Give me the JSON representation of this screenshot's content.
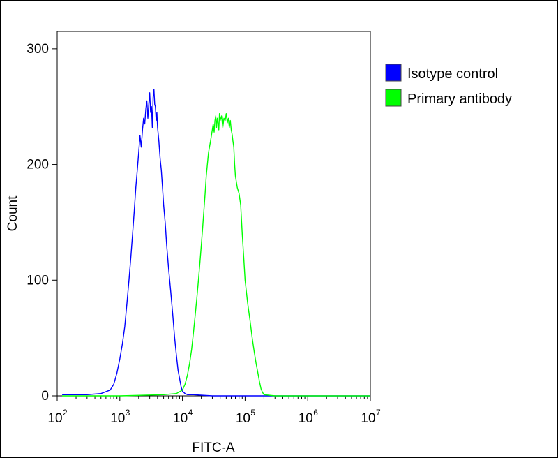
{
  "chart_data": {
    "type": "line",
    "title": "",
    "xlabel": "FITC-A",
    "ylabel": "Count",
    "x_scale": "log",
    "xlim": [
      100,
      10000000
    ],
    "ylim": [
      0,
      315
    ],
    "x_ticks": [
      {
        "base": "10",
        "exp": "2"
      },
      {
        "base": "10",
        "exp": "3"
      },
      {
        "base": "10",
        "exp": "4"
      },
      {
        "base": "10",
        "exp": "5"
      },
      {
        "base": "10",
        "exp": "6"
      },
      {
        "base": "10",
        "exp": "7"
      }
    ],
    "y_ticks": [
      "0",
      "100",
      "200",
      "300"
    ],
    "y_tick_values": [
      0,
      100,
      200,
      300
    ],
    "grid": false,
    "legend_position": "right",
    "series": [
      {
        "name": "Isotype control",
        "color": "#0000ff",
        "x": [
          120,
          300,
          500,
          700,
          800,
          900,
          1000,
          1100,
          1200,
          1300,
          1400,
          1500,
          1600,
          1700,
          1800,
          1900,
          2000,
          2100,
          2200,
          2300,
          2400,
          2500,
          2600,
          2700,
          2800,
          2900,
          3000,
          3100,
          3200,
          3300,
          3400,
          3500,
          3600,
          3700,
          3800,
          3900,
          4000,
          4200,
          4400,
          4600,
          4800,
          5000,
          5300,
          5600,
          6000,
          6500,
          7000,
          7500,
          8000,
          8500,
          9000,
          9500,
          10000,
          11000,
          12000,
          15000,
          30000,
          100000,
          1000000,
          10000000
        ],
        "y": [
          1,
          1,
          2,
          5,
          10,
          20,
          32,
          45,
          60,
          80,
          100,
          120,
          140,
          160,
          180,
          195,
          210,
          225,
          215,
          230,
          240,
          235,
          248,
          255,
          240,
          252,
          262,
          245,
          250,
          232,
          258,
          265,
          252,
          250,
          238,
          245,
          232,
          220,
          205,
          195,
          180,
          165,
          150,
          130,
          110,
          90,
          70,
          50,
          35,
          22,
          15,
          8,
          4,
          2,
          1,
          1,
          0,
          0,
          0,
          0
        ]
      },
      {
        "name": "Primary antibody",
        "color": "#00ff00",
        "x": [
          120,
          1000,
          5000,
          8000,
          10000,
          11000,
          12000,
          13000,
          14000,
          15000,
          16000,
          17000,
          18000,
          19000,
          20000,
          21000,
          22000,
          23000,
          24000,
          25000,
          26000,
          27000,
          28000,
          29000,
          30000,
          31000,
          32000,
          33000,
          34000,
          35000,
          36000,
          37000,
          38000,
          39000,
          40000,
          42000,
          44000,
          46000,
          48000,
          50000,
          52000,
          54000,
          56000,
          58000,
          60000,
          62000,
          64000,
          66000,
          68000,
          70000,
          75000,
          80000,
          85000,
          90000,
          95000,
          100000,
          110000,
          120000,
          130000,
          140000,
          150000,
          160000,
          170000,
          180000,
          190000,
          200000,
          300000,
          1000000,
          10000000
        ],
        "y": [
          0,
          0,
          1,
          2,
          5,
          10,
          18,
          28,
          40,
          55,
          70,
          85,
          100,
          115,
          130,
          145,
          160,
          175,
          190,
          200,
          210,
          215,
          220,
          225,
          230,
          235,
          228,
          238,
          242,
          232,
          240,
          236,
          230,
          244,
          238,
          242,
          232,
          240,
          238,
          244,
          236,
          240,
          232,
          238,
          230,
          226,
          220,
          215,
          200,
          190,
          180,
          175,
          165,
          140,
          120,
          100,
          80,
          65,
          50,
          38,
          28,
          20,
          12,
          6,
          3,
          1,
          0,
          0,
          0
        ]
      }
    ]
  }
}
